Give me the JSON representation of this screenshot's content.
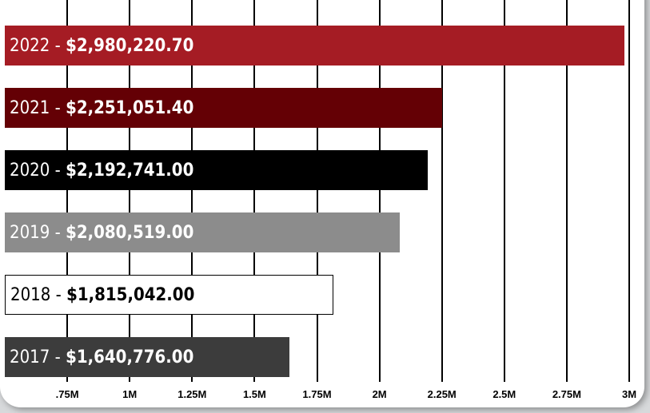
{
  "chart_data": {
    "type": "bar",
    "orientation": "horizontal",
    "categories": [
      "2022",
      "2021",
      "2020",
      "2019",
      "2018",
      "2017"
    ],
    "values": [
      2980220.7,
      2251051.4,
      2192741.0,
      2080519.0,
      1815042.0,
      1640776.0
    ],
    "labels": [
      {
        "year": "2022",
        "amount": "$2,980,220.70"
      },
      {
        "year": "2021",
        "amount": "$2,251,051.40"
      },
      {
        "year": "2020",
        "amount": "$2,192,741.00"
      },
      {
        "year": "2019",
        "amount": "$2,080,519.00"
      },
      {
        "year": "2018",
        "amount": "$1,815,042.00"
      },
      {
        "year": "2017",
        "amount": "$1,640,776.00"
      }
    ],
    "separator": " - ",
    "bar_colors": [
      "#a51c24",
      "#640005",
      "#000000",
      "#8c8c8c",
      "#ffffff",
      "#3c3c3c"
    ],
    "text_colors": [
      "#ffffff",
      "#ffffff",
      "#ffffff",
      "#ffffff",
      "#000000",
      "#ffffff"
    ],
    "x_ticks": [
      {
        "label": ".75M",
        "value": 750000
      },
      {
        "label": "1M",
        "value": 1000000
      },
      {
        "label": "1.25M",
        "value": 1250000
      },
      {
        "label": "1.5M",
        "value": 1500000
      },
      {
        "label": "1.75M",
        "value": 1750000
      },
      {
        "label": "2M",
        "value": 2000000
      },
      {
        "label": "2.25M",
        "value": 2250000
      },
      {
        "label": "2.5M",
        "value": 2500000
      },
      {
        "label": "2.75M",
        "value": 2750000
      },
      {
        "label": "3M",
        "value": 3000000
      }
    ],
    "xlim": [
      500000,
      3000000
    ],
    "grid": true,
    "title": "",
    "xlabel": "",
    "ylabel": ""
  }
}
